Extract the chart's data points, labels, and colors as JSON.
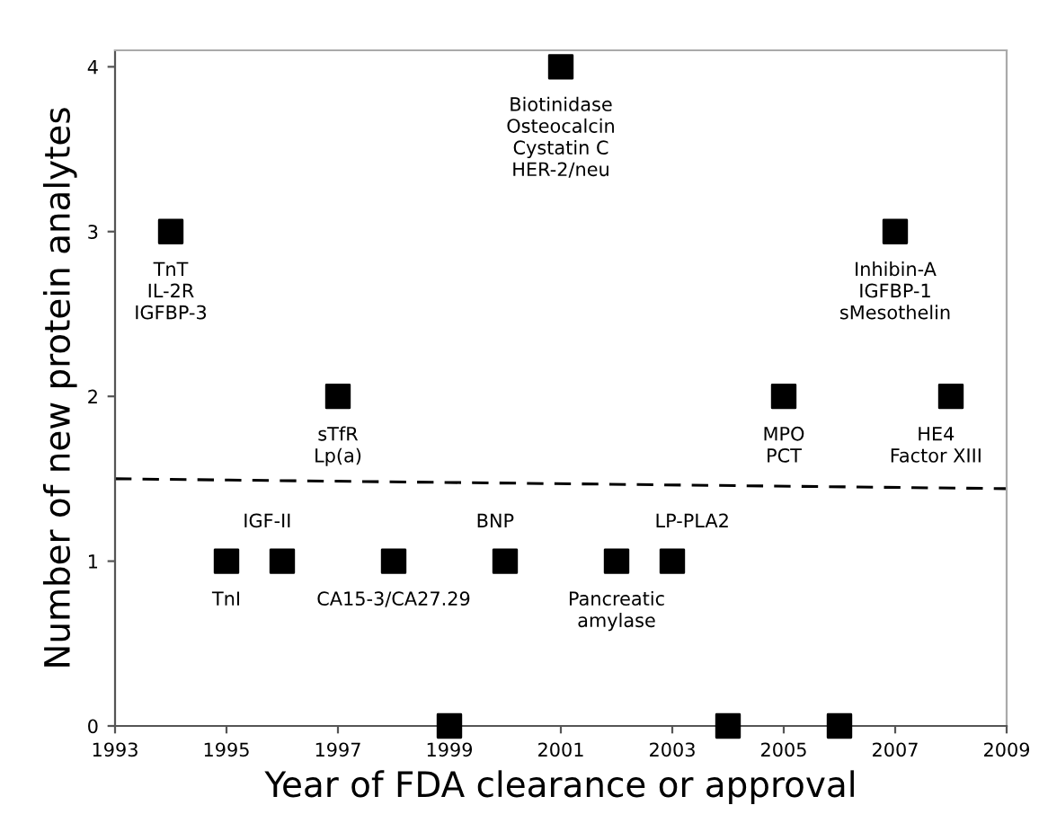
{
  "chart_data": {
    "type": "scatter",
    "xlabel": "Year of FDA clearance or approval",
    "ylabel": "Number of new protein analytes",
    "series": [
      {
        "color": "#000000",
        "marker": "square",
        "x": [
          1994,
          1995,
          1996,
          1997,
          1998,
          1999,
          2000,
          2001,
          2002,
          2003,
          2004,
          2005,
          2006,
          2007,
          2008
        ],
        "values": [
          3,
          1,
          1,
          2,
          1,
          0,
          1,
          4,
          1,
          1,
          0,
          2,
          0,
          3,
          2
        ]
      },
      {
        "type": "line",
        "color": "#000000",
        "marker": "none",
        "line_style": "dashed",
        "x": [
          1993,
          2009
        ],
        "values": [
          1.5,
          1.44
        ]
      }
    ],
    "annotations": [
      {
        "text": "TnT\nIL-2R\nIGFBP-3",
        "x": 1994,
        "y": 3
      },
      {
        "text": "TnI",
        "x": 1995,
        "y": 1
      },
      {
        "text": "IGF-II",
        "x": 1996,
        "y": 1
      },
      {
        "text": "sTfR\nLp(a)",
        "x": 1997,
        "y": 2
      },
      {
        "text": "CA15-3/CA27.29",
        "x": 1998,
        "y": 1
      },
      {
        "text": "BNP",
        "x": 2000,
        "y": 1
      },
      {
        "text": "Biotinidase\nOsteocalcin\nCystatin C\nHER-2/neu",
        "x": 2001,
        "y": 4
      },
      {
        "text": "Pancreatic\namylase",
        "x": 2002,
        "y": 1
      },
      {
        "text": "LP-PLA2",
        "x": 2003,
        "y": 1
      },
      {
        "text": "MPO\nPCT",
        "x": 2005,
        "y": 2
      },
      {
        "text": "Inhibin-A\nIGFBP-1\nsMesothelin",
        "x": 2007,
        "y": 3
      },
      {
        "text": "HE4\nFactor XIII",
        "x": 2008,
        "y": 2
      }
    ],
    "xlim": [
      1993,
      2009
    ],
    "xticks": [
      1993,
      1995,
      1997,
      1999,
      2001,
      2003,
      2005,
      2007,
      2009
    ],
    "ylim": [
      0,
      4.1
    ],
    "yticks": [
      0,
      1,
      2,
      3,
      4
    ],
    "grid": false,
    "legend": false
  }
}
